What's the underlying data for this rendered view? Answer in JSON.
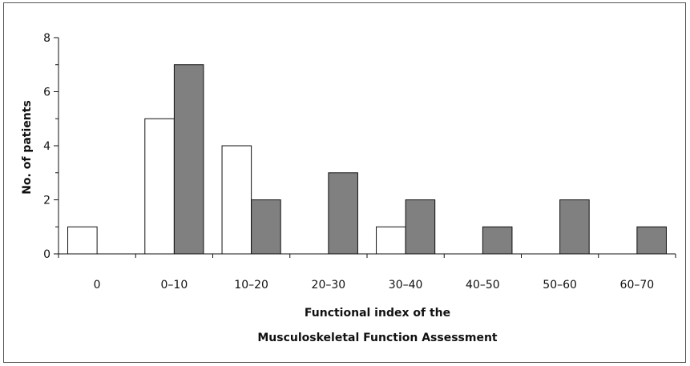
{
  "chart_data": {
    "type": "bar",
    "title": "",
    "xlabel_lines": [
      "Functional index of the",
      "Musculoskeletal Function Assessment"
    ],
    "ylabel": "No. of patients",
    "ylim": [
      0,
      8
    ],
    "yticks": [
      "0",
      "2",
      "4",
      "6",
      "8"
    ],
    "categories": [
      "0",
      "0–10",
      "10–20",
      "20–30",
      "30–40",
      "40–50",
      "50–60",
      "60–70"
    ],
    "series": [
      {
        "values": [
          1,
          5,
          4,
          0,
          1,
          0,
          0,
          0
        ],
        "color": "#ffffff"
      },
      {
        "values": [
          0,
          7,
          2,
          3,
          2,
          1,
          2,
          1
        ],
        "color": "#808080"
      }
    ],
    "grid": false,
    "legend": "none"
  }
}
